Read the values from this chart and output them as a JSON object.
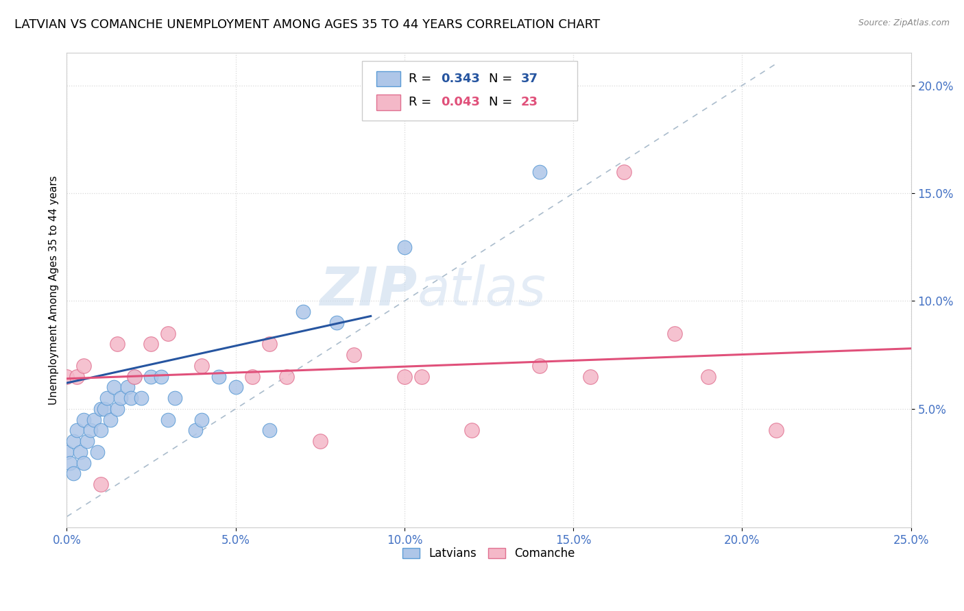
{
  "title": "LATVIAN VS COMANCHE UNEMPLOYMENT AMONG AGES 35 TO 44 YEARS CORRELATION CHART",
  "source": "Source: ZipAtlas.com",
  "ylabel_label": "Unemployment Among Ages 35 to 44 years",
  "xlim": [
    0.0,
    0.25
  ],
  "ylim": [
    -0.005,
    0.215
  ],
  "latvian_color": "#aec6e8",
  "latvian_edge": "#5b9bd5",
  "comanche_color": "#f4b8c8",
  "comanche_edge": "#e07090",
  "latvian_R": 0.343,
  "latvian_N": 37,
  "comanche_R": 0.043,
  "comanche_N": 23,
  "legend_label1": "Latvians",
  "legend_label2": "Comanche",
  "latvian_line_color": "#2655a0",
  "comanche_line_color": "#e0507a",
  "ref_line_color": "#aabccc",
  "ytick_color": "#4472c4",
  "xtick_color": "#4472c4",
  "grid_color": "#d8d8d8",
  "watermark_zip": "ZIP",
  "watermark_atlas": "atlas",
  "title_fontsize": 13,
  "axis_label_fontsize": 11,
  "tick_fontsize": 12,
  "latvian_x": [
    0.0,
    0.001,
    0.002,
    0.002,
    0.003,
    0.004,
    0.005,
    0.005,
    0.006,
    0.007,
    0.008,
    0.009,
    0.01,
    0.01,
    0.011,
    0.012,
    0.013,
    0.014,
    0.015,
    0.016,
    0.018,
    0.019,
    0.02,
    0.022,
    0.025,
    0.028,
    0.03,
    0.032,
    0.038,
    0.04,
    0.045,
    0.05,
    0.06,
    0.07,
    0.08,
    0.1,
    0.14
  ],
  "latvian_y": [
    0.03,
    0.025,
    0.02,
    0.035,
    0.04,
    0.03,
    0.045,
    0.025,
    0.035,
    0.04,
    0.045,
    0.03,
    0.05,
    0.04,
    0.05,
    0.055,
    0.045,
    0.06,
    0.05,
    0.055,
    0.06,
    0.055,
    0.065,
    0.055,
    0.065,
    0.065,
    0.045,
    0.055,
    0.04,
    0.045,
    0.065,
    0.06,
    0.04,
    0.095,
    0.09,
    0.125,
    0.16
  ],
  "comanche_x": [
    0.0,
    0.003,
    0.005,
    0.01,
    0.015,
    0.02,
    0.025,
    0.03,
    0.04,
    0.055,
    0.06,
    0.065,
    0.075,
    0.085,
    0.1,
    0.105,
    0.12,
    0.14,
    0.155,
    0.165,
    0.18,
    0.19,
    0.21
  ],
  "comanche_y": [
    0.065,
    0.065,
    0.07,
    0.015,
    0.08,
    0.065,
    0.08,
    0.085,
    0.07,
    0.065,
    0.08,
    0.065,
    0.035,
    0.075,
    0.065,
    0.065,
    0.04,
    0.07,
    0.065,
    0.16,
    0.085,
    0.065,
    0.04
  ],
  "latvian_line_x": [
    0.0,
    0.09
  ],
  "latvian_line_y_start": 0.062,
  "latvian_line_y_end": 0.093,
  "comanche_line_x": [
    0.0,
    0.25
  ],
  "comanche_line_y_start": 0.064,
  "comanche_line_y_end": 0.078
}
